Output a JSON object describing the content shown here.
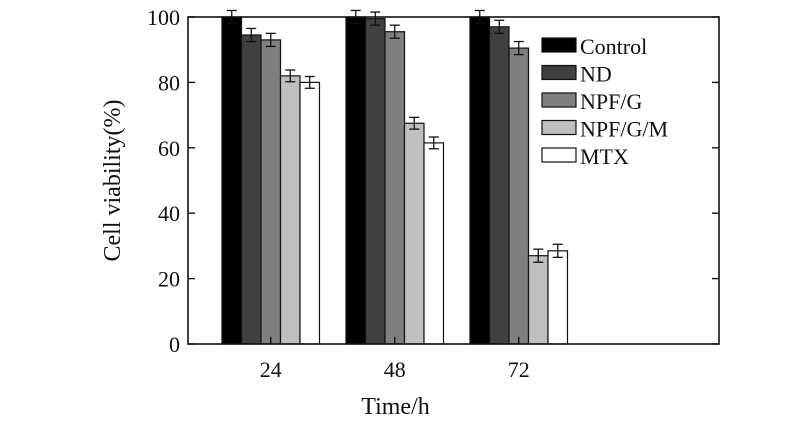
{
  "chart_data": {
    "type": "bar",
    "title": "",
    "xlabel": "Time/h",
    "ylabel": "Cell viability(%)",
    "categories": [
      "24",
      "48",
      "72"
    ],
    "ylim": [
      0,
      100
    ],
    "yticks": [
      "0",
      "20",
      "40",
      "60",
      "80",
      "100"
    ],
    "grid": false,
    "legend_position": "top-right",
    "series": [
      {
        "name": "Control",
        "color": "#000000",
        "values": [
          100,
          100,
          100
        ],
        "errors": [
          2,
          2,
          2
        ]
      },
      {
        "name": "ND",
        "color": "#404040",
        "values": [
          94.5,
          99.5,
          97
        ],
        "errors": [
          2,
          2,
          2
        ]
      },
      {
        "name": "NPF/G",
        "color": "#7f7f7f",
        "values": [
          93,
          95.5,
          90.5
        ],
        "errors": [
          2,
          2,
          2
        ]
      },
      {
        "name": "NPF/G/M",
        "color": "#bfbfbf",
        "values": [
          82,
          67.5,
          27
        ],
        "errors": [
          1.8,
          1.8,
          2
        ]
      },
      {
        "name": "MTX",
        "color": "#ffffff",
        "values": [
          80,
          61.5,
          28.5
        ],
        "errors": [
          1.8,
          1.8,
          2
        ]
      }
    ]
  }
}
